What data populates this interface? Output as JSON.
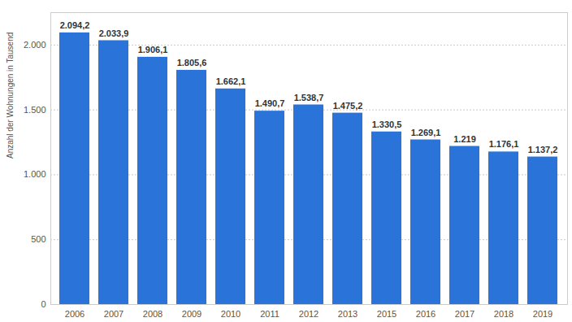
{
  "chart_data": {
    "type": "bar",
    "y_label": "Anzahl der Wohnungen in Tausend",
    "categories": [
      "2006",
      "2007",
      "2008",
      "2009",
      "2010",
      "2011",
      "2012",
      "2013",
      "2015",
      "2016",
      "2017",
      "2018",
      "2019"
    ],
    "values": [
      2094.2,
      2033.9,
      1906.1,
      1805.6,
      1662.1,
      1490.7,
      1538.7,
      1475.2,
      1330.5,
      1269.1,
      1219,
      1176.1,
      1137.2
    ],
    "value_labels": [
      "2.094,2",
      "2.033,9",
      "1.906,1",
      "1.805,6",
      "1.662,1",
      "1.490,7",
      "1.538,7",
      "1.475,2",
      "1.330,5",
      "1.269,1",
      "1.219",
      "1.176,1",
      "1.137,2"
    ],
    "color": "#2a74d9",
    "ylim": [
      0,
      2250
    ],
    "yticks": [
      0,
      500,
      {
        "value": 1000,
        "label": "1.000"
      },
      {
        "value": 1500,
        "label": "1.500"
      },
      {
        "value": 2000,
        "label": "2.000"
      }
    ],
    "grid": true,
    "data_labels": true
  }
}
